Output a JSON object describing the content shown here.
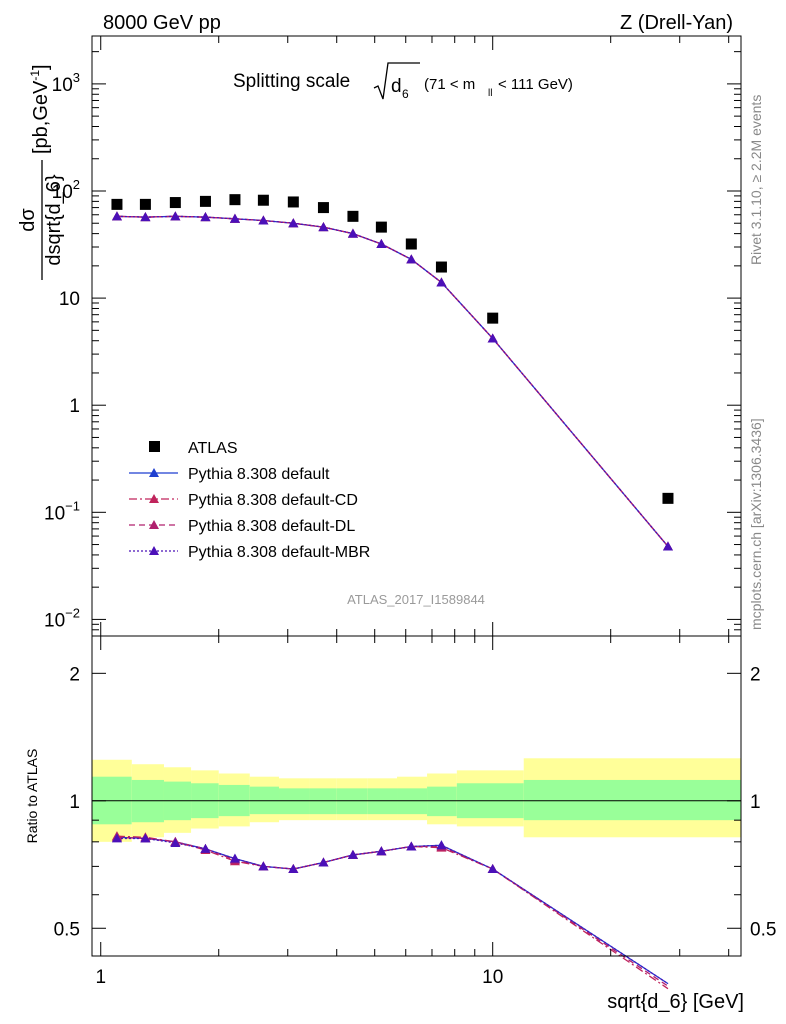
{
  "header": {
    "left_label": "8000 GeV pp",
    "right_label": "Z (Drell-Yan)"
  },
  "side_labels": {
    "rivet": "Rivet 3.1.10, ≥ 2.2M events",
    "mcplots": "mcplots.cern.ch [arXiv:1306.3436]"
  },
  "chart_data": [
    {
      "type": "scatter",
      "title": "Splitting scale",
      "title_var": "√d",
      "title_sub": "6",
      "title_cut": "(71 < m",
      "title_cut_sub": "ll",
      "title_cut_end": " < 111 GeV)",
      "watermark": "ATLAS_2017_I1589844",
      "ylabel_num": "dσ",
      "ylabel_den": "dsqrt{d_6}",
      "ylabel_unit": "[pb,GeV",
      "ylabel_unit_sup": "-1",
      "ylabel_unit_end": "]",
      "xscale": "log",
      "yscale": "log",
      "xlim": [
        0.95,
        43
      ],
      "ylim": [
        0.007,
        2800
      ],
      "y_ticks": [
        {
          "v": 1000,
          "base": "10",
          "exp": "3"
        },
        {
          "v": 100,
          "base": "10",
          "exp": "2"
        },
        {
          "v": 10,
          "base": "10",
          "exp": ""
        },
        {
          "v": 1,
          "base": "1",
          "exp": ""
        },
        {
          "v": 0.1,
          "base": "10",
          "exp": "−1"
        },
        {
          "v": 0.01,
          "base": "10",
          "exp": "−2"
        }
      ],
      "legend_position": "bottom-left",
      "x": [
        1.1,
        1.3,
        1.55,
        1.85,
        2.2,
        2.6,
        3.1,
        3.7,
        4.4,
        5.2,
        6.2,
        7.4,
        10.0,
        28.0
      ],
      "series": [
        {
          "name": "ATLAS",
          "color": "#000000",
          "marker": "square",
          "values": [
            75,
            75,
            78,
            80,
            83,
            82,
            79,
            70,
            58,
            46,
            32,
            19.5,
            6.5,
            0.135
          ]
        },
        {
          "name": "Pythia 8.308 default",
          "color": "#1f3fd0",
          "marker": "triangle",
          "line": "solid",
          "values": [
            58,
            57,
            58,
            57,
            55,
            53,
            50,
            46,
            40,
            32,
            23,
            14,
            4.2,
            0.048
          ]
        },
        {
          "name": "Pythia 8.308 default-CD",
          "color": "#c0245c",
          "marker": "triangle",
          "line": "dashdot",
          "values": [
            58,
            57,
            58,
            57,
            55,
            53,
            50,
            46,
            40,
            32,
            23,
            14,
            4.2,
            0.048
          ]
        },
        {
          "name": "Pythia 8.308 default-DL",
          "color": "#b0206e",
          "marker": "triangle",
          "line": "dashed",
          "values": [
            58,
            57,
            58,
            57,
            55,
            53,
            50,
            46,
            40,
            32,
            23,
            14,
            4.2,
            0.048
          ]
        },
        {
          "name": "Pythia 8.308 default-MBR",
          "color": "#4b10b8",
          "marker": "triangle",
          "line": "dotted",
          "values": [
            58,
            57,
            58,
            57,
            55,
            53,
            50,
            46,
            40,
            32,
            23,
            14,
            4.2,
            0.048
          ]
        }
      ]
    },
    {
      "type": "line",
      "ylabel": "Ratio to ATLAS",
      "xlabel": "sqrt{d_6} [GeV]",
      "xscale": "log",
      "yscale": "log",
      "xlim": [
        0.95,
        43
      ],
      "ylim": [
        0.43,
        2.45
      ],
      "y_ticks": [
        {
          "v": 2,
          "label": "2"
        },
        {
          "v": 1,
          "label": "1"
        },
        {
          "v": 0.5,
          "label": "0.5"
        }
      ],
      "x_ticks": [
        {
          "v": 1,
          "label": "1"
        },
        {
          "v": 10,
          "label": "10"
        }
      ],
      "bins": [
        {
          "lo": 0.95,
          "hi": 1.2,
          "inner": [
            0.88,
            1.14
          ],
          "outer": [
            0.8,
            1.25
          ]
        },
        {
          "lo": 1.2,
          "hi": 1.45,
          "inner": [
            0.89,
            1.12
          ],
          "outer": [
            0.82,
            1.22
          ]
        },
        {
          "lo": 1.45,
          "hi": 1.7,
          "inner": [
            0.9,
            1.11
          ],
          "outer": [
            0.84,
            1.2
          ]
        },
        {
          "lo": 1.7,
          "hi": 2.0,
          "inner": [
            0.91,
            1.1
          ],
          "outer": [
            0.86,
            1.18
          ]
        },
        {
          "lo": 2.0,
          "hi": 2.4,
          "inner": [
            0.92,
            1.09
          ],
          "outer": [
            0.87,
            1.16
          ]
        },
        {
          "lo": 2.4,
          "hi": 2.85,
          "inner": [
            0.93,
            1.08
          ],
          "outer": [
            0.89,
            1.14
          ]
        },
        {
          "lo": 2.85,
          "hi": 3.4,
          "inner": [
            0.93,
            1.07
          ],
          "outer": [
            0.9,
            1.13
          ]
        },
        {
          "lo": 3.4,
          "hi": 4.0,
          "inner": [
            0.93,
            1.07
          ],
          "outer": [
            0.9,
            1.13
          ]
        },
        {
          "lo": 4.0,
          "hi": 4.8,
          "inner": [
            0.93,
            1.07
          ],
          "outer": [
            0.9,
            1.13
          ]
        },
        {
          "lo": 4.8,
          "hi": 5.7,
          "inner": [
            0.93,
            1.07
          ],
          "outer": [
            0.9,
            1.13
          ]
        },
        {
          "lo": 5.7,
          "hi": 6.8,
          "inner": [
            0.93,
            1.07
          ],
          "outer": [
            0.9,
            1.14
          ]
        },
        {
          "lo": 6.8,
          "hi": 8.1,
          "inner": [
            0.92,
            1.08
          ],
          "outer": [
            0.88,
            1.16
          ]
        },
        {
          "lo": 8.1,
          "hi": 12.0,
          "inner": [
            0.91,
            1.1
          ],
          "outer": [
            0.87,
            1.18
          ]
        },
        {
          "lo": 12.0,
          "hi": 43.0,
          "inner": [
            0.9,
            1.12
          ],
          "outer": [
            0.82,
            1.26
          ]
        }
      ],
      "x": [
        1.1,
        1.3,
        1.55,
        1.85,
        2.2,
        2.6,
        3.1,
        3.7,
        4.4,
        5.2,
        6.2,
        7.4,
        10.0,
        28.0
      ],
      "series": [
        {
          "name": "Pythia 8.308 default",
          "color": "#1f3fd0",
          "line": "solid",
          "values": [
            0.82,
            0.815,
            0.8,
            0.77,
            0.73,
            0.7,
            0.69,
            0.715,
            0.745,
            0.76,
            0.78,
            0.785,
            0.69,
            0.37
          ]
        },
        {
          "name": "Pythia 8.308 default-CD",
          "color": "#c0245c",
          "line": "dashdot",
          "values": [
            0.825,
            0.82,
            0.8,
            0.765,
            0.72,
            0.7,
            0.69,
            0.715,
            0.745,
            0.76,
            0.78,
            0.775,
            0.69,
            0.36
          ]
        },
        {
          "name": "Pythia 8.308 default-DL",
          "color": "#b0206e",
          "line": "dashed",
          "values": [
            0.82,
            0.815,
            0.8,
            0.77,
            0.725,
            0.7,
            0.69,
            0.715,
            0.745,
            0.76,
            0.78,
            0.78,
            0.69,
            0.365
          ]
        },
        {
          "name": "Pythia 8.308 default-MBR",
          "color": "#4b10b8",
          "line": "dotted",
          "values": [
            0.815,
            0.815,
            0.795,
            0.77,
            0.73,
            0.7,
            0.69,
            0.715,
            0.745,
            0.76,
            0.78,
            0.785,
            0.69,
            0.37
          ]
        }
      ]
    }
  ]
}
